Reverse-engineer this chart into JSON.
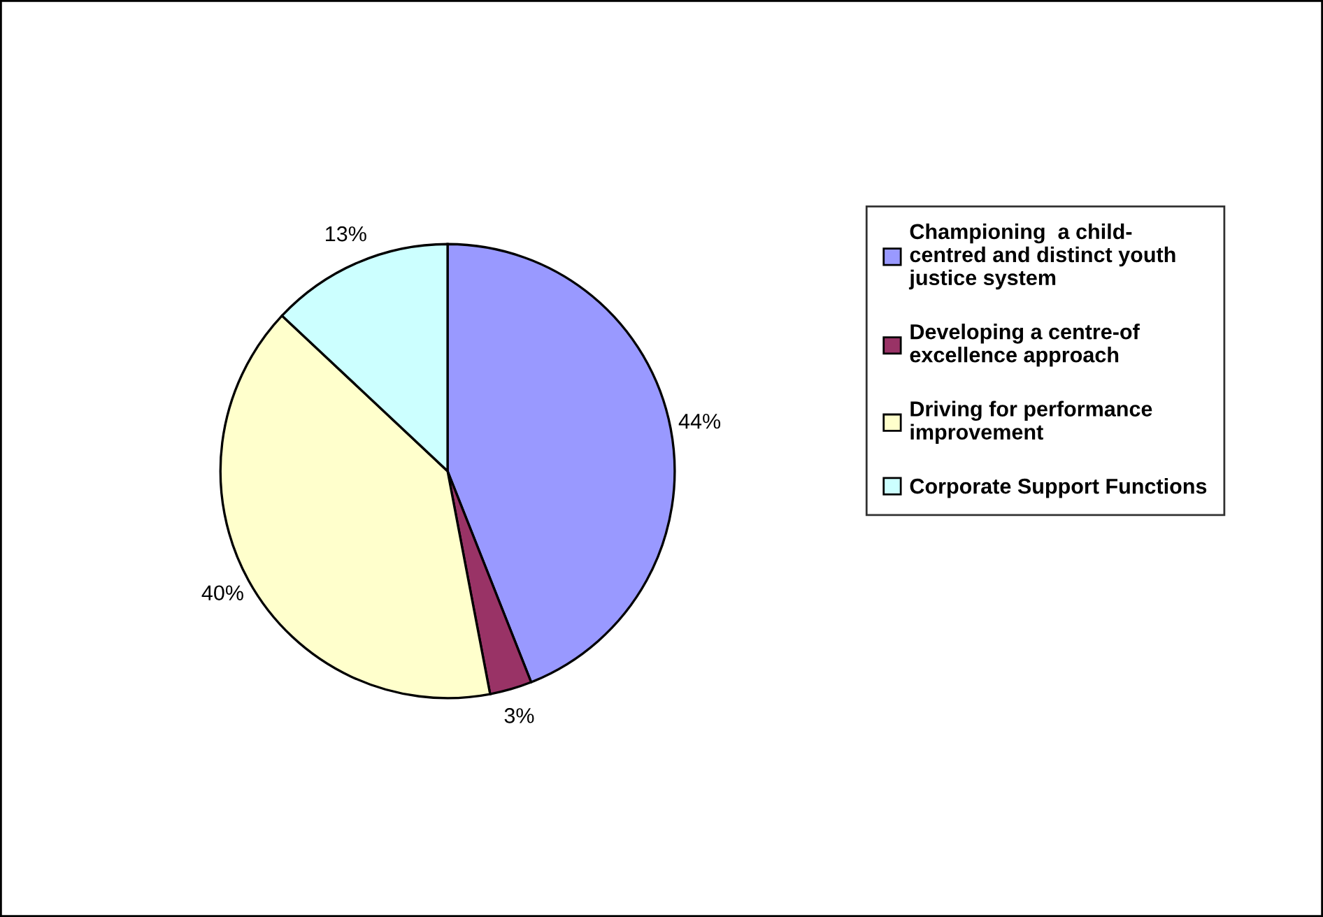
{
  "chart_data": {
    "type": "pie",
    "categories": [
      "Championing  a child-\ncentred and distinct youth\njustice system",
      "Developing a centre-of\nexcellence approach",
      "Driving for performance\nimprovement",
      "Corporate Support Functions"
    ],
    "values": [
      44,
      3,
      40,
      13
    ],
    "colors": [
      "#9999ff",
      "#993366",
      "#ffffcc",
      "#ccffff"
    ],
    "value_labels": [
      "44%",
      "3%",
      "40%",
      "13%"
    ],
    "legend": "right"
  }
}
